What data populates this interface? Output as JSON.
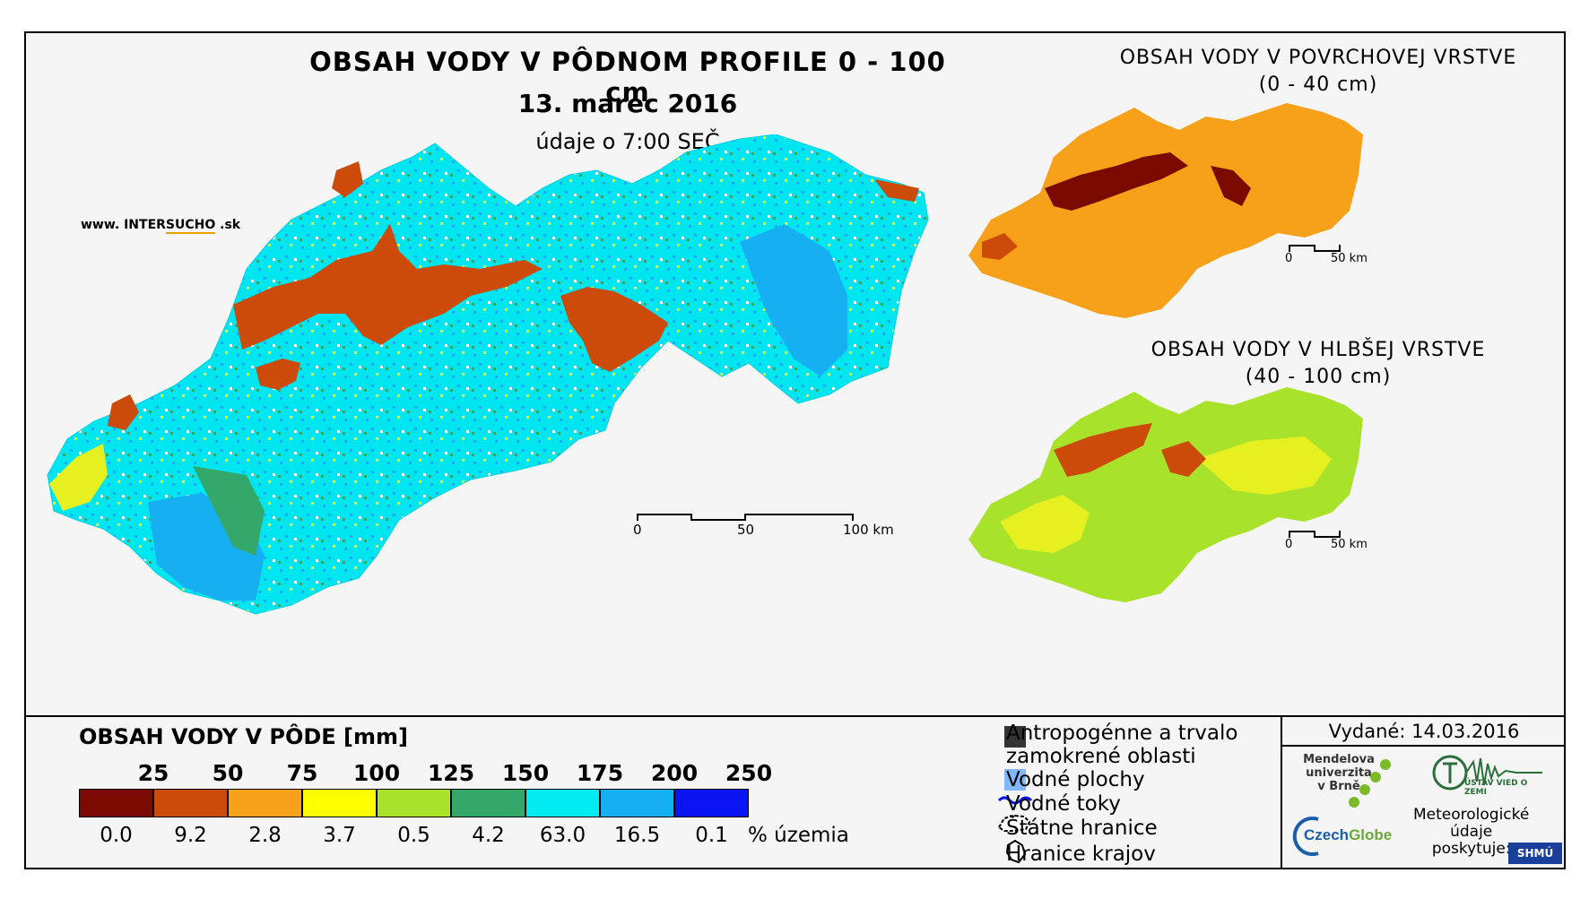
{
  "title": {
    "main": "OBSAH VODY V PÔDNOM PROFILE 0 - 100 cm",
    "date": "13. marec 2016",
    "time": "údaje o 7:00 SEČ"
  },
  "website": {
    "prefix": "www. INTER",
    "brand": "SUCHO",
    "suffix": " .sk"
  },
  "insets": [
    {
      "title_line1": "OBSAH VODY V POVRCHOVEJ VRSTVE",
      "title_line2": "(0 - 40 cm)",
      "scale_0": "0",
      "scale_50": "50 km"
    },
    {
      "title_line1": "OBSAH VODY V HLBŠEJ VRSTVE",
      "title_line2": "(40 - 100 cm)",
      "scale_0": "0",
      "scale_50": "50 km"
    }
  ],
  "main_scale": {
    "l0": "0",
    "l50": "50",
    "l100": "100 km"
  },
  "legend": {
    "title": "OBSAH VODY V PÔDE [mm]",
    "percent_label": "% územia",
    "classes": [
      {
        "upper": "25",
        "percent": "0.0",
        "color": "#7a0a00"
      },
      {
        "upper": "50",
        "percent": "9.2",
        "color": "#cc4a0a"
      },
      {
        "upper": "75",
        "percent": "2.8",
        "color": "#f7a11a"
      },
      {
        "upper": "100",
        "percent": "3.7",
        "color": "#ffff00"
      },
      {
        "upper": "125",
        "percent": "0.5",
        "color": "#a8e22a"
      },
      {
        "upper": "150",
        "percent": "4.2",
        "color": "#34a86a"
      },
      {
        "upper": "175",
        "percent": "63.0",
        "color": "#00ecf0"
      },
      {
        "upper": "200",
        "percent": "16.5",
        "color": "#16b0f2"
      },
      {
        "upper": "250",
        "percent": "0.1",
        "color": "#0a14f0"
      }
    ]
  },
  "keys": {
    "anthropogenic_1": "Antropogénne a trvalo",
    "anthropogenic_2": "zamokrené oblasti",
    "water_bodies": "Vodné plochy",
    "streams": "Vodné toky",
    "state_border": "Štátne hranice",
    "region_border": "Hranice krajov"
  },
  "issued": "Vydané: 14.03.2016",
  "logos": {
    "mendel_1": "Mendelova",
    "mendel_2": "univerzita",
    "mendel_3": "v Brně",
    "czech": "Czech",
    "globe": "Globe",
    "uvgz": "ÚSTAV VIED O ZEMI",
    "shmu": "SHMÚ"
  },
  "meteo": {
    "line1": "Meteorologické",
    "line2": "údaje",
    "line3": "poskytuje:"
  }
}
